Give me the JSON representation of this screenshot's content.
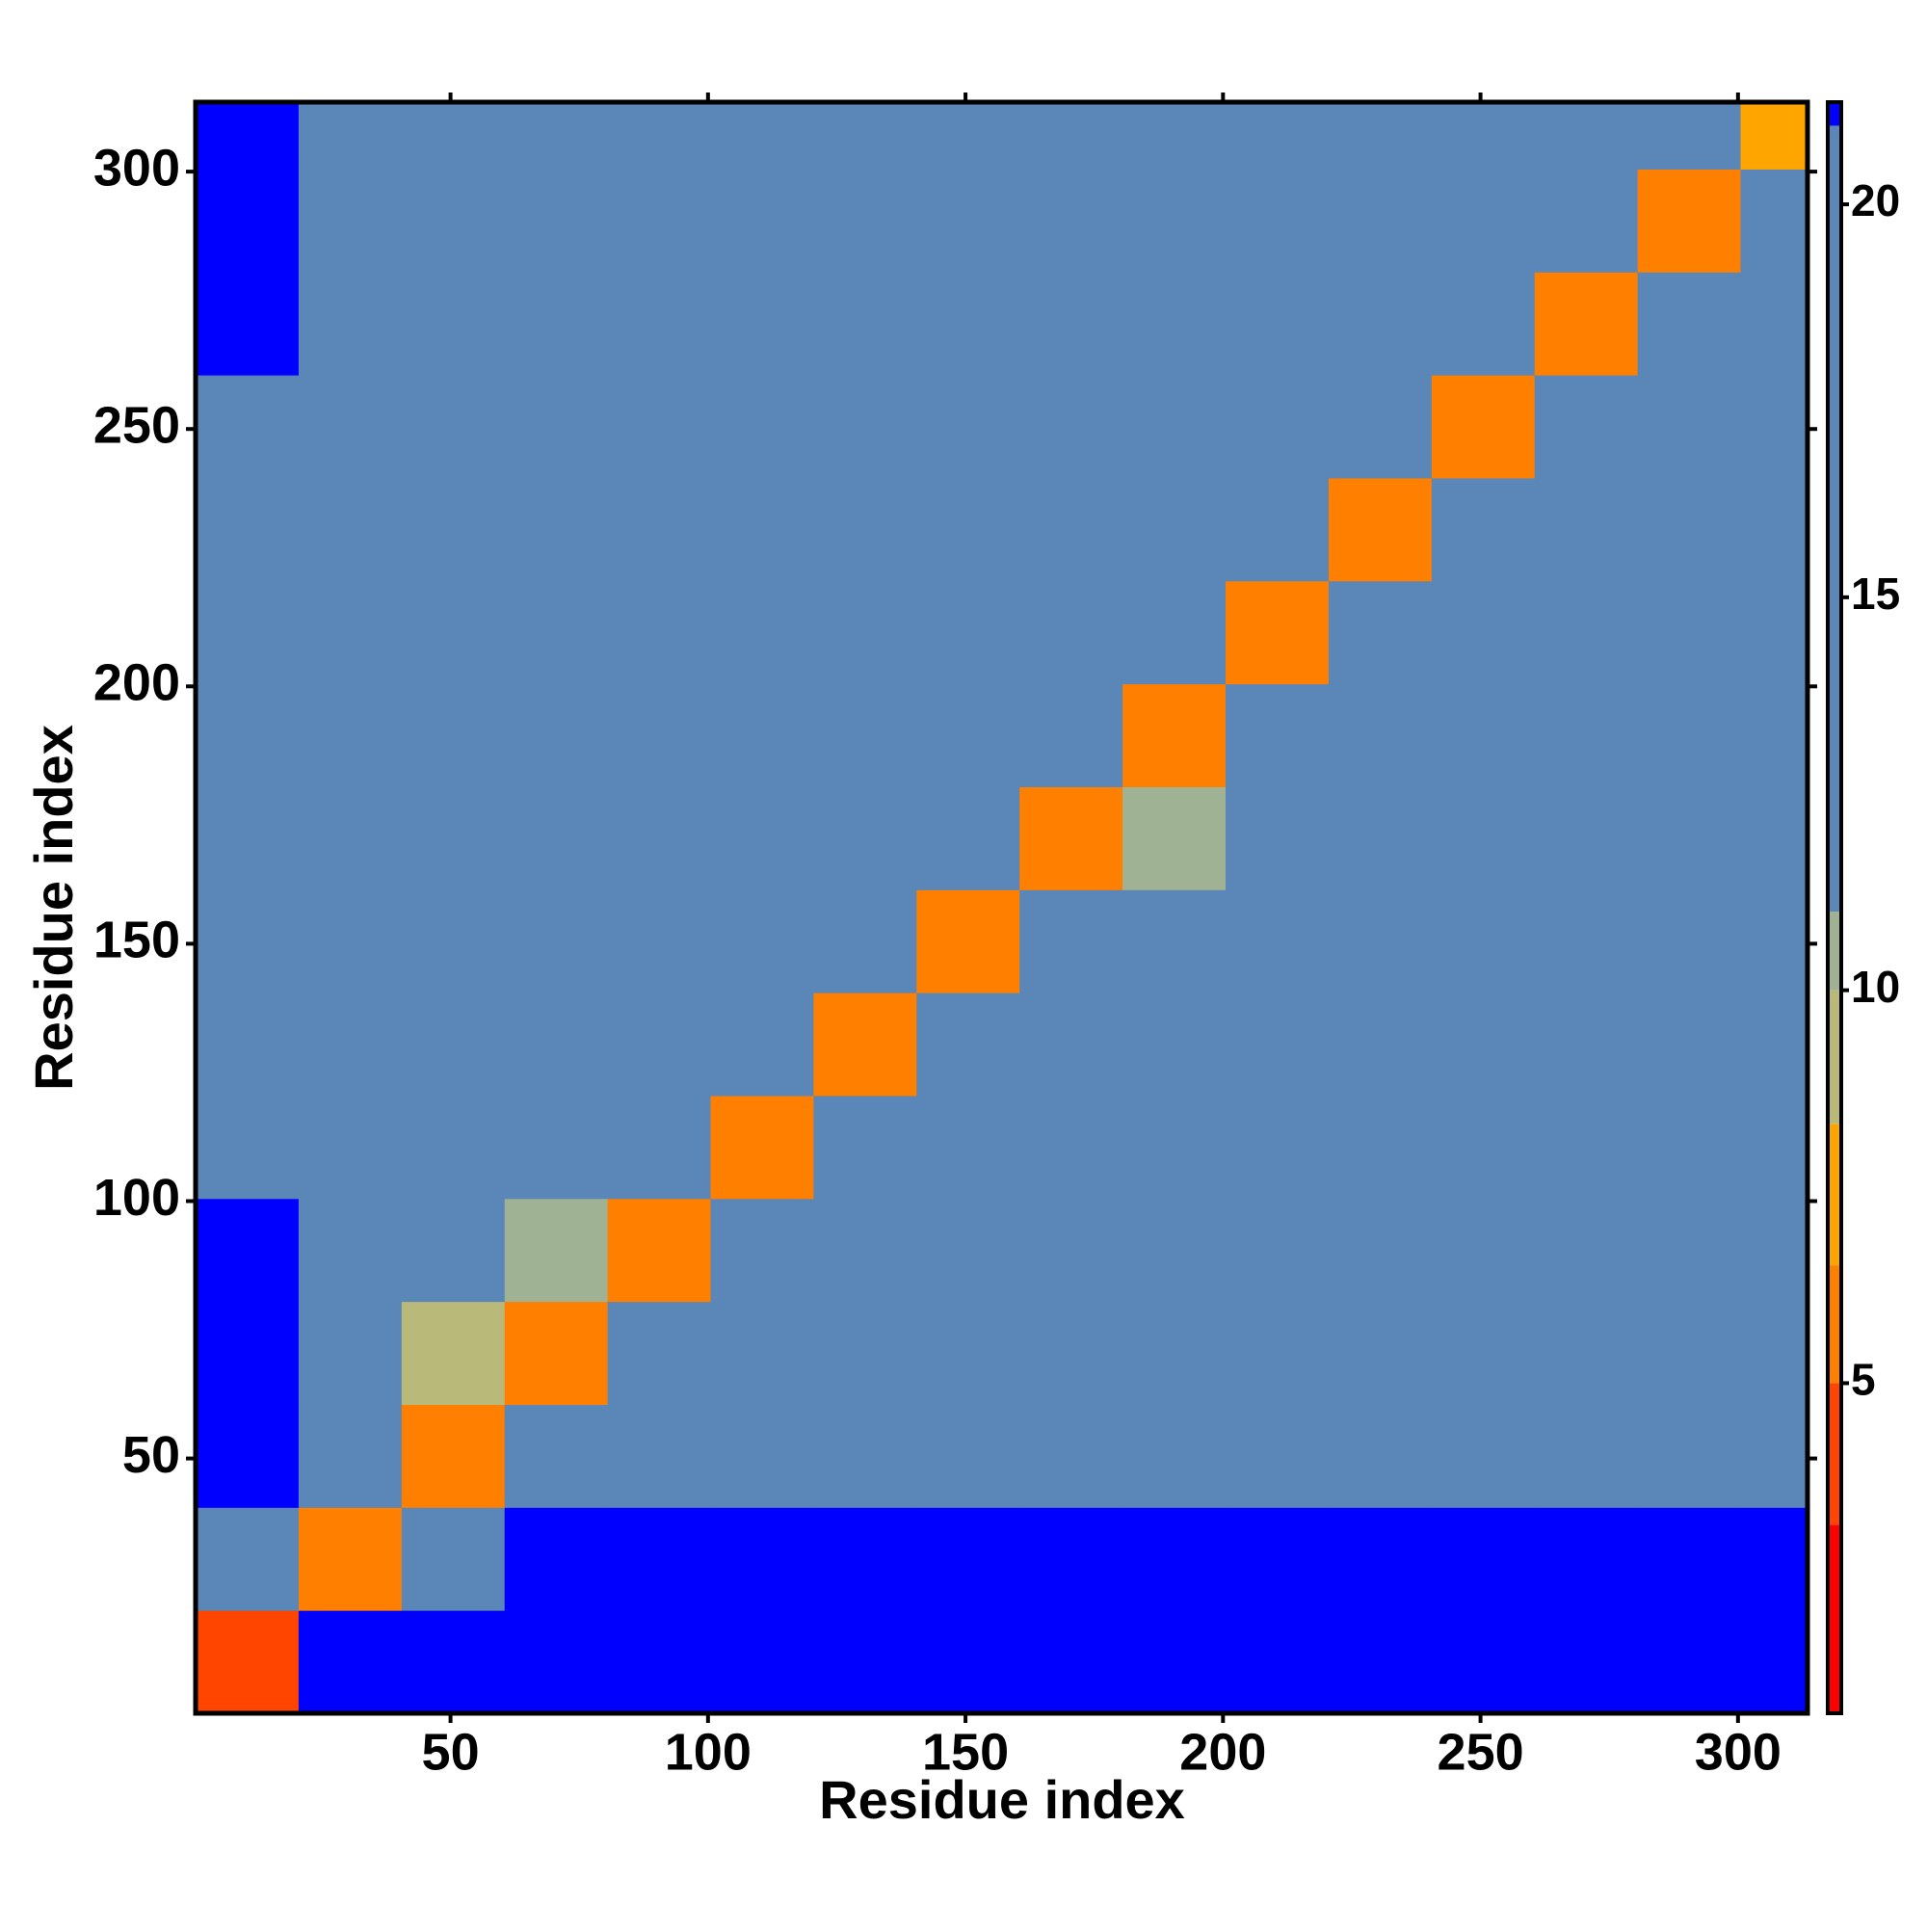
{
  "chart_data": {
    "type": "heatmap",
    "x_label": "Residue index",
    "y_label": "Residue index",
    "xlim": [
      0.5,
      313.5
    ],
    "ylim": [
      0.5,
      313.5
    ],
    "xticks": [
      50,
      100,
      150,
      200,
      250,
      300
    ],
    "yticks": [
      50,
      100,
      150,
      200,
      250,
      300
    ],
    "x_edges": [
      0.5,
      20.5,
      40.5,
      60.5,
      80.5,
      100.5,
      120.5,
      140.5,
      160.5,
      180.5,
      200.5,
      220.5,
      240.5,
      260.5,
      280.5,
      300.5,
      313.5
    ],
    "y_edges": [
      0.5,
      20.5,
      40.5,
      60.5,
      80.5,
      100.5,
      120.5,
      140.5,
      160.5,
      180.5,
      200.5,
      220.5,
      240.5,
      260.5,
      280.5,
      300.5,
      313.5
    ],
    "z": [
      [
        4,
        21,
        21,
        21,
        21,
        21,
        21,
        21,
        21,
        21,
        21,
        21,
        21,
        21,
        21,
        21
      ],
      [
        14,
        5,
        19,
        21,
        21,
        21,
        21,
        21,
        21,
        21,
        21,
        21,
        21,
        21,
        21,
        21
      ],
      [
        21,
        20,
        6,
        11,
        17,
        14,
        17,
        17,
        17,
        13,
        20,
        19,
        19,
        20,
        20,
        20
      ],
      [
        21,
        19,
        9,
        5,
        15,
        13,
        15,
        17,
        17,
        16,
        20,
        17,
        17,
        17,
        19,
        19
      ],
      [
        21,
        19,
        15,
        10,
        5,
        12,
        16,
        19,
        17,
        12,
        19,
        17,
        18,
        19,
        19,
        19
      ],
      [
        20,
        15,
        14,
        11,
        11,
        6,
        13,
        18,
        13,
        13,
        17,
        19,
        19,
        20,
        19,
        19
      ],
      [
        20,
        17,
        17,
        16,
        15,
        12,
        6,
        11,
        18,
        12,
        17,
        17,
        14,
        17,
        17,
        17
      ],
      [
        20,
        18,
        17,
        16,
        19,
        14,
        18,
        6,
        12,
        15,
        18,
        17,
        14,
        15,
        15,
        14
      ],
      [
        20,
        17,
        17,
        17,
        15,
        13,
        16,
        18,
        6,
        10,
        16,
        14,
        17,
        17,
        17,
        14
      ],
      [
        20,
        14,
        16,
        14,
        18,
        12,
        12,
        18,
        11,
        6,
        14,
        18,
        18,
        19,
        17,
        19
      ],
      [
        20,
        17,
        17,
        17,
        17,
        17,
        17,
        17,
        14,
        12,
        6,
        11,
        15,
        18,
        17,
        18
      ],
      [
        20,
        19,
        17,
        17,
        17,
        17,
        17,
        15,
        12,
        17,
        13,
        6,
        12,
        14,
        13,
        17
      ],
      [
        20,
        19,
        19,
        18,
        17,
        18,
        17,
        13,
        14,
        17,
        17,
        12,
        6,
        12,
        15,
        17
      ],
      [
        21,
        20,
        18,
        18,
        19,
        19,
        20,
        14,
        17,
        17,
        18,
        14,
        12,
        6,
        12,
        15
      ],
      [
        21,
        20,
        19,
        18,
        18,
        19,
        19,
        13,
        17,
        19,
        17,
        13,
        16,
        12,
        6,
        13
      ],
      [
        21,
        20,
        19,
        19,
        18,
        19,
        19,
        15,
        17,
        19,
        19,
        17,
        17,
        14,
        12,
        7
      ]
    ],
    "colorbar": {
      "lim": [
        0.8,
        21.3
      ],
      "ticks": [
        5,
        10,
        15,
        20
      ],
      "stops": [
        {
          "value": 0.8,
          "color": "#ff0000"
        },
        {
          "value": 3.2,
          "color": "#ff4500"
        },
        {
          "value": 5,
          "color": "#ff7f00"
        },
        {
          "value": 6.5,
          "color": "#ffa500"
        },
        {
          "value": 8.3,
          "color": "#b9b97a"
        },
        {
          "value": 10,
          "color": "#9fb394"
        },
        {
          "value": 11,
          "color": "#5a86b8"
        },
        {
          "value": 21,
          "color": "#0000ff"
        }
      ]
    }
  }
}
